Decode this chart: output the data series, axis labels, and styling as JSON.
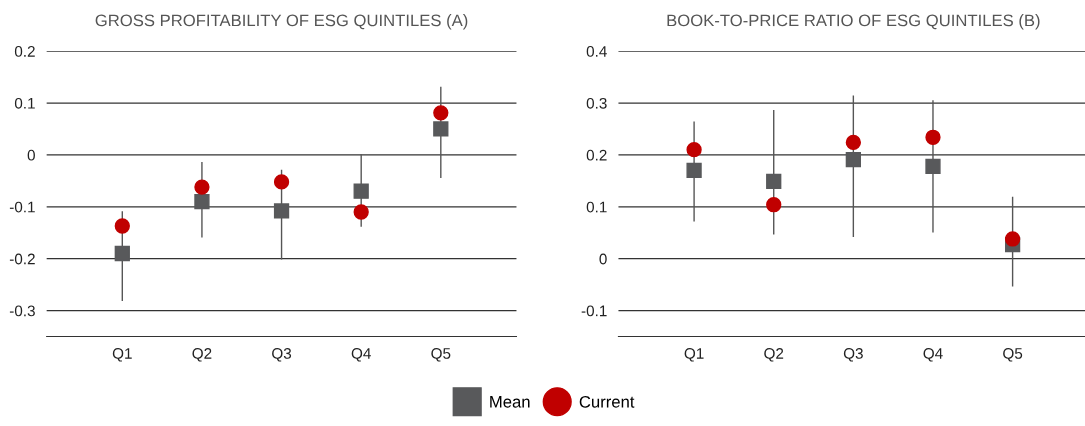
{
  "chart_data": [
    {
      "type": "scatter",
      "title": "GROSS PROFITABILITY OF ESG QUINTILES (A)",
      "categories": [
        "Q1",
        "Q2",
        "Q3",
        "Q4",
        "Q5"
      ],
      "ylim": [
        -0.35,
        0.2
      ],
      "yticks": [
        {
          "value": -0.3,
          "label": "-0.3"
        },
        {
          "value": -0.2,
          "label": "-0.2"
        },
        {
          "value": -0.1,
          "label": "-0.1"
        },
        0,
        0.1,
        0.2
      ],
      "grid": "y",
      "legend": "bottom",
      "series": [
        {
          "name": "Mean",
          "color": "#58595b",
          "marker": "square",
          "values": [
            -0.19,
            -0.09,
            -0.108,
            -0.07,
            0.05
          ],
          "errors": [
            [
              -0.28,
              -0.11
            ],
            [
              -0.158,
              -0.015
            ],
            [
              -0.2,
              -0.03
            ],
            [
              -0.137,
              0.0
            ],
            [
              -0.043,
              0.13
            ]
          ]
        },
        {
          "name": "Current",
          "color": "#c00000",
          "marker": "circle",
          "values": [
            -0.137,
            -0.062,
            -0.052,
            -0.11,
            0.081
          ]
        }
      ]
    },
    {
      "type": "scatter",
      "title": "BOOK-TO-PRICE RATIO OF ESG QUINTILES (B)",
      "categories": [
        "Q1",
        "Q2",
        "Q3",
        "Q4",
        "Q5"
      ],
      "ylim": [
        -0.15,
        0.4
      ],
      "yticks": [
        {
          "value": -0.1,
          "label": "-0.1"
        },
        0,
        0.1,
        0.2,
        0.3,
        0.4
      ],
      "grid": "y",
      "legend": "bottom",
      "series": [
        {
          "name": "Mean",
          "color": "#58595b",
          "marker": "square",
          "values": [
            0.17,
            0.149,
            0.191,
            0.178,
            0.027
          ],
          "errors": [
            [
              0.073,
              0.263
            ],
            [
              0.048,
              0.285
            ],
            [
              0.043,
              0.313
            ],
            [
              0.052,
              0.304
            ],
            [
              -0.052,
              0.118
            ]
          ]
        },
        {
          "name": "Current",
          "color": "#c00000",
          "marker": "circle",
          "values": [
            0.21,
            0.104,
            0.224,
            0.234,
            0.038
          ]
        }
      ]
    }
  ]
}
